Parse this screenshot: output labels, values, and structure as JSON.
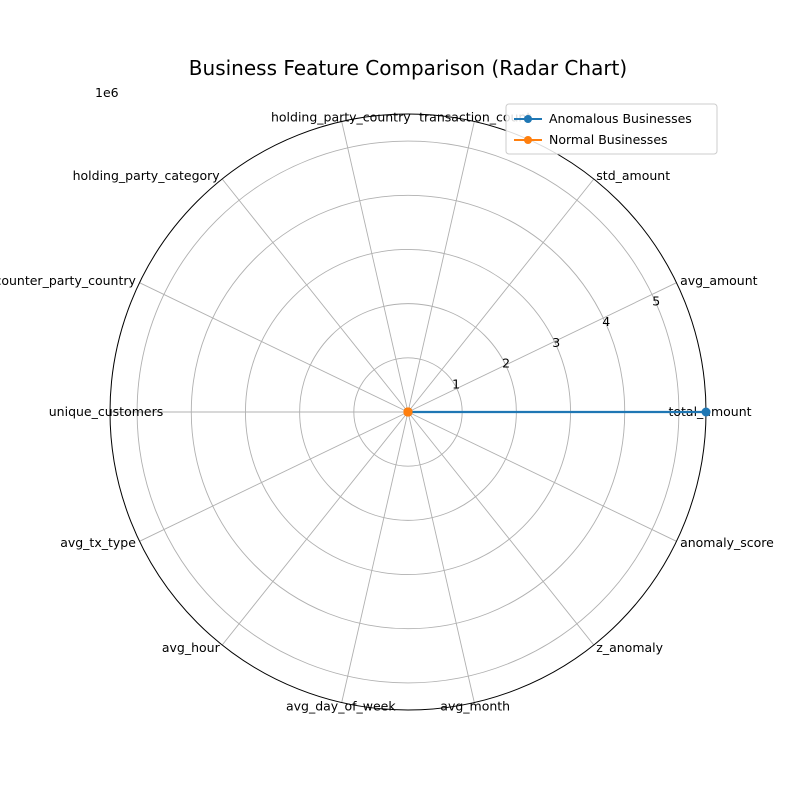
{
  "chart_data": {
    "type": "radar",
    "title": "Business Feature Comparison (Radar Chart)",
    "scale_note": "1e6",
    "categories": [
      "total_amount",
      "avg_amount",
      "std_amount",
      "transaction_count",
      "holding_party_country",
      "holding_party_category",
      "avg_counter_party_country",
      "unique_customers",
      "avg_tx_type",
      "avg_hour",
      "avg_day_of_week",
      "avg_month",
      "z_anomaly",
      "anomaly_score"
    ],
    "rlim": [
      0,
      5.5
    ],
    "rticks": [
      "1",
      "2",
      "3",
      "4",
      "5"
    ],
    "rtick_values": [
      1,
      2,
      3,
      4,
      5
    ],
    "series": [
      {
        "name": "Anomalous Businesses",
        "color": "#1f77b4",
        "values": [
          5.5,
          0,
          0,
          0,
          0,
          0,
          0,
          0,
          0,
          0,
          0,
          0,
          0,
          0
        ]
      },
      {
        "name": "Normal Businesses",
        "color": "#ff7f0e",
        "values": [
          0,
          0,
          0,
          0,
          0,
          0,
          0,
          0,
          0,
          0,
          0,
          0,
          0,
          0
        ]
      }
    ],
    "grid": true,
    "legend_position": "top-right"
  }
}
